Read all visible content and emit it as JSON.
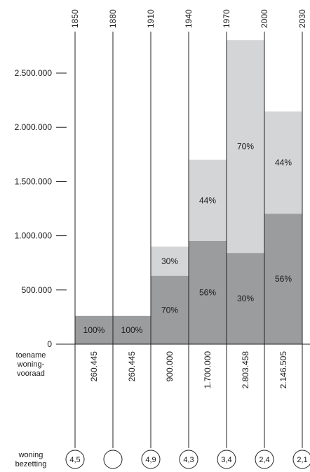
{
  "chart_data": {
    "type": "bar",
    "stacked": true,
    "periods": [
      "1850",
      "1880",
      "1910",
      "1940",
      "1970",
      "2000",
      "2030"
    ],
    "yticks": [
      {
        "value": 0,
        "label": "0"
      },
      {
        "value": 500000,
        "label": "500.000"
      },
      {
        "value": 1000000,
        "label": "1.000.000"
      },
      {
        "value": 1500000,
        "label": "1.500.000"
      },
      {
        "value": 2000000,
        "label": "2.000.000"
      },
      {
        "value": 2500000,
        "label": "2.500.000"
      }
    ],
    "ylim": [
      0,
      2850000
    ],
    "bars": [
      {
        "total": 260445,
        "dark_pct": "100%",
        "light_pct": ""
      },
      {
        "total": 260445,
        "dark_pct": "100%",
        "light_pct": ""
      },
      {
        "total": 900000,
        "dark_pct": "70%",
        "light_pct": "30%"
      },
      {
        "total": 1700000,
        "dark_pct": "56%",
        "light_pct": "44%"
      },
      {
        "total": 2803458,
        "dark_pct": "30%",
        "light_pct": "70%"
      },
      {
        "total": 2146505,
        "dark_pct": "56%",
        "light_pct": "44%"
      }
    ],
    "dark_fraction": [
      1.0,
      1.0,
      0.7,
      0.56,
      0.3,
      0.56
    ],
    "increase_label": [
      "toename",
      "woning-",
      "vooraad"
    ],
    "increase_values": [
      "260.445",
      "260.445",
      "900.000",
      "1.700.000",
      "2.803.458",
      "2.146.505"
    ],
    "occupancy_label": [
      "woning",
      "bezetting"
    ],
    "occupancy_values": [
      "4,5",
      "",
      "4,9",
      "4,3",
      "3,4",
      "2,4",
      "2,1"
    ],
    "colors": {
      "dark": "#9b9c9e",
      "light": "#d4d5d7",
      "line": "#222222"
    }
  }
}
